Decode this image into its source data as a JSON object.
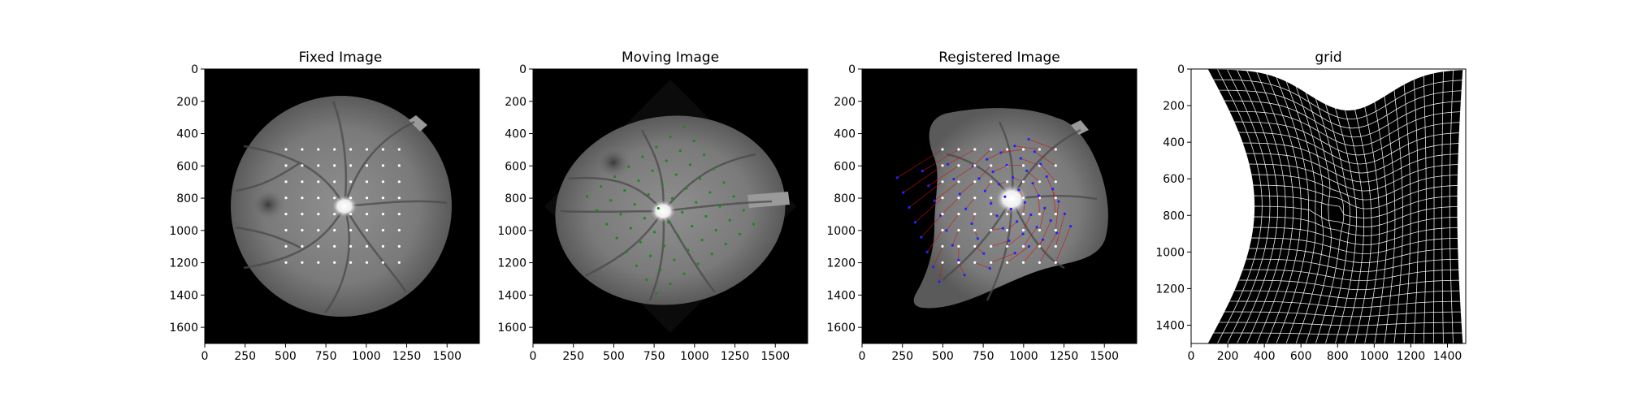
{
  "panels": [
    {
      "title": "Fixed Image",
      "x_ticks": [
        "0",
        "250",
        "500",
        "750",
        "1000",
        "1250",
        "1500"
      ],
      "y_ticks": [
        "0",
        "200",
        "400",
        "600",
        "800",
        "1000",
        "1200",
        "1400",
        "1600"
      ]
    },
    {
      "title": "Moving Image",
      "x_ticks": [
        "0",
        "250",
        "500",
        "750",
        "1000",
        "1250",
        "1500"
      ],
      "y_ticks": [
        "0",
        "200",
        "400",
        "600",
        "800",
        "1000",
        "1200",
        "1400",
        "1600"
      ]
    },
    {
      "title": "Registered Image",
      "x_ticks": [
        "0",
        "250",
        "500",
        "750",
        "1000",
        "1250",
        "1500"
      ],
      "y_ticks": [
        "0",
        "200",
        "400",
        "600",
        "800",
        "1000",
        "1200",
        "1400",
        "1600"
      ]
    },
    {
      "title": "grid",
      "x_ticks": [
        "0",
        "200",
        "400",
        "600",
        "800",
        "1000",
        "1200",
        "1400"
      ],
      "y_ticks": [
        "0",
        "200",
        "400",
        "600",
        "800",
        "1000",
        "1200",
        "1400"
      ]
    }
  ],
  "colors": {
    "landmark_fixed": "#ffffff",
    "landmark_moving": "#1a8a1a",
    "landmark_registered": "#2222ff",
    "displacement_line": "#cc1111",
    "grid_line": "#ffffff",
    "image_background": "#000000"
  }
}
